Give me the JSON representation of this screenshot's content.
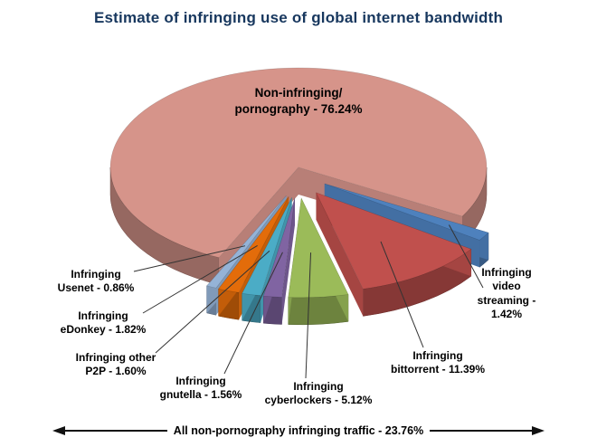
{
  "title": "Estimate of infringing use of global internet bandwidth",
  "chart_data": {
    "type": "pie",
    "style": "3d-exploded",
    "unit": "percent",
    "order": "clockwise-from-top",
    "title": "Estimate of infringing use of global internet bandwidth",
    "slices": [
      {
        "label": "Non-infringing/pornography",
        "value": 76.24,
        "color": "#D6948A"
      },
      {
        "label": "Infringing video streaming",
        "value": 1.42,
        "color": "#4E81BD"
      },
      {
        "label": "Infringing bittorrent",
        "value": 11.39,
        "color": "#C0504D"
      },
      {
        "label": "Infringing cyberlockers",
        "value": 5.12,
        "color": "#9BBB59"
      },
      {
        "label": "Infringing gnutella",
        "value": 1.56,
        "color": "#8064A2"
      },
      {
        "label": "Infringing other P2P",
        "value": 1.6,
        "color": "#4BACC6"
      },
      {
        "label": "Infringing eDonkey",
        "value": 1.82,
        "color": "#E36C0A"
      },
      {
        "label": "Infringing Usenet",
        "value": 0.86,
        "color": "#95B3D7"
      }
    ],
    "footer": "All non-pornography infringing traffic - 23.76%",
    "legend": "none"
  },
  "labels": {
    "non_infringing": "Non-infringing/\npornography - 76.24%",
    "video_streaming": "Infringing\nvideo\nstreaming -\n1.42%",
    "bittorrent": "Infringing\nbittorrent - 11.39%",
    "cyberlockers": "Infringing\ncyberlockers - 5.12%",
    "gnutella": "Infringing\ngnutella - 1.56%",
    "other_p2p": "Infringing other\nP2P - 1.60%",
    "edonkey": "Infringing\neDonkey - 1.82%",
    "usenet": "Infringing\nUsenet - 0.86%"
  },
  "footer": {
    "label": "All non-pornography infringing traffic - 23.76%"
  }
}
